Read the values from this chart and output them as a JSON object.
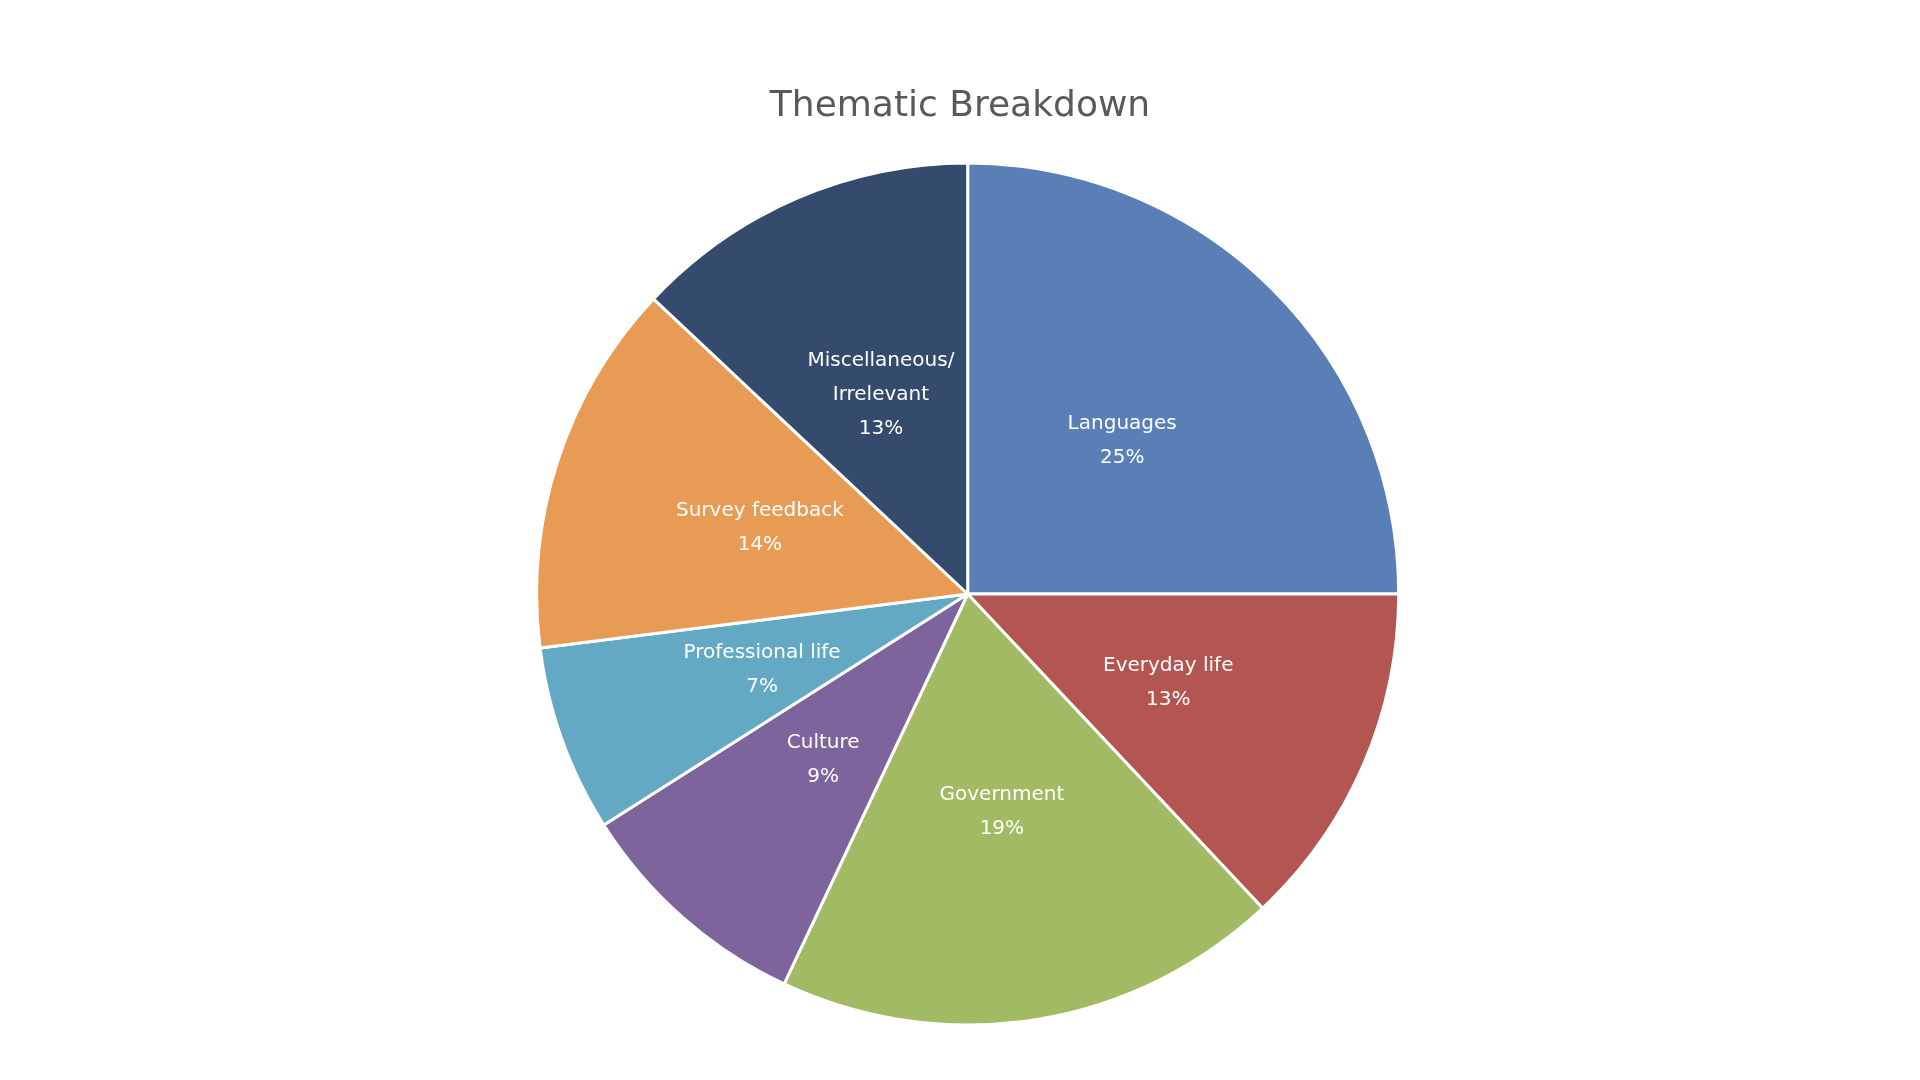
{
  "chart_data": {
    "type": "pie",
    "title": "Thematic Breakdown",
    "categories": [
      "Languages",
      "Everyday life",
      "Government",
      "Culture",
      "Professional life",
      "Survey feedback",
      "Miscellaneous/Irrelevant"
    ],
    "values": [
      25,
      13,
      19,
      9,
      7,
      14,
      13
    ],
    "colors": [
      "#5a7fb6",
      "#b35651",
      "#a2ba64",
      "#7e649c",
      "#64a9c3",
      "#e89b54",
      "#344b6e"
    ],
    "value_labels": [
      "25%",
      "13%",
      "19%",
      "9%",
      "7%",
      "14%",
      "13%"
    ],
    "legend": false
  }
}
